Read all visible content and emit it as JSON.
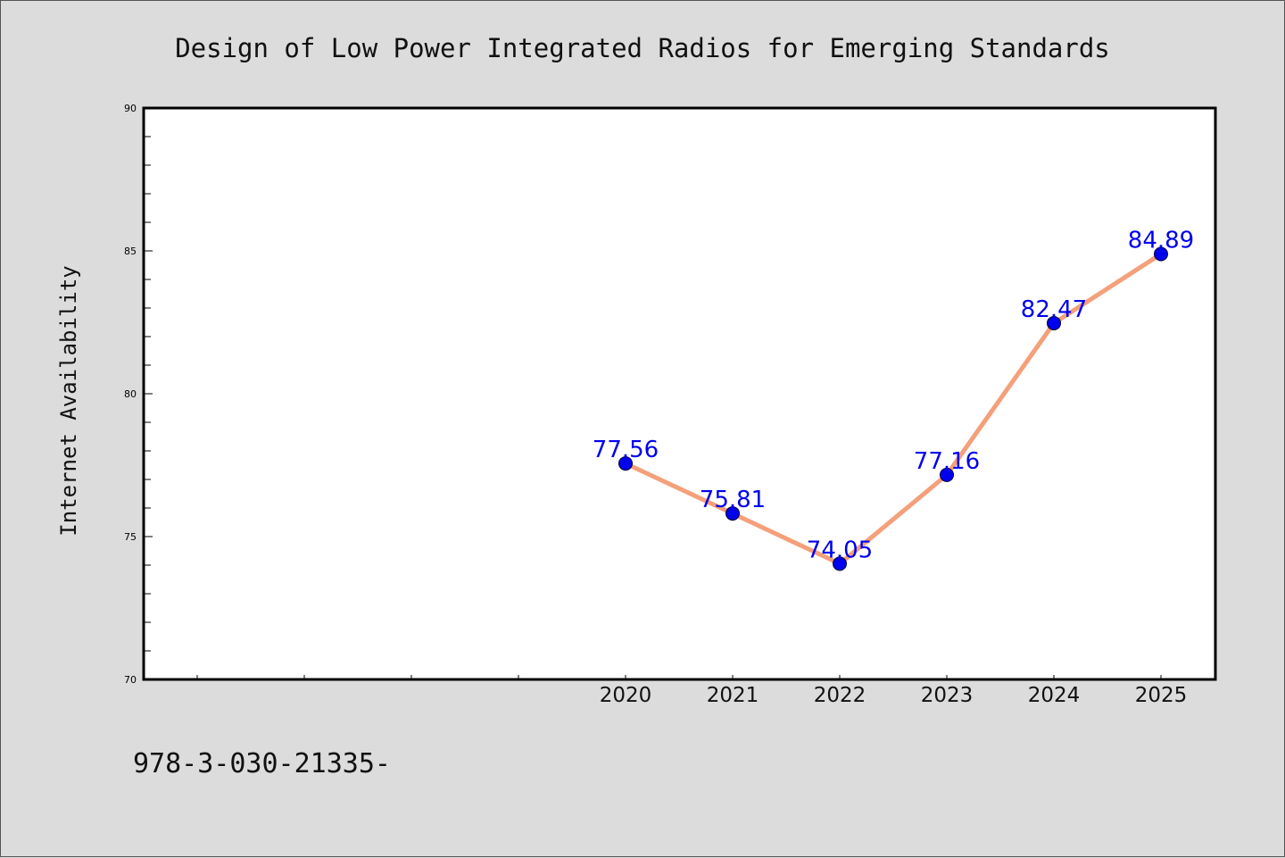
{
  "chart_data": {
    "type": "line",
    "title": "Design of Low Power Integrated Radios for Emerging Standards",
    "xlabel": "",
    "ylabel": "Internet Availability",
    "categories": [
      "2020",
      "2021",
      "2022",
      "2023",
      "2024",
      "2025"
    ],
    "series": [
      {
        "values": [
          77.56,
          75.81,
          74.05,
          77.16,
          82.47,
          84.89
        ]
      }
    ],
    "data_labels": [
      "77.56",
      "75.81",
      "74.05",
      "77.16",
      "82.47",
      "84.89"
    ],
    "ylim": [
      70,
      90
    ],
    "y_ticks": [
      "70",
      "75",
      "80",
      "85",
      "90"
    ],
    "x_slots_before_data": 4,
    "grid": false,
    "legend": "none",
    "line_color": "#f4a07a",
    "marker_color": "#0000ee",
    "label_color": "#0000ee"
  },
  "footer": {
    "text": "978-3-030-21335-"
  }
}
